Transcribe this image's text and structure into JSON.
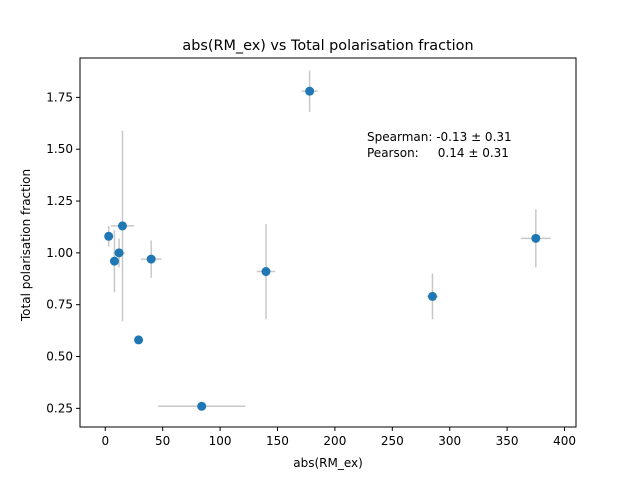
{
  "chart_data": {
    "type": "scatter",
    "title": "abs(RM_ex) vs Total polarisation fraction",
    "xlabel": "abs(RM_ex)",
    "ylabel": "Total polarisation fraction",
    "xlim": [
      -22,
      410
    ],
    "ylim": [
      0.16,
      1.94
    ],
    "xticks": [
      0,
      50,
      100,
      150,
      200,
      250,
      300,
      350,
      400
    ],
    "xtick_labels": [
      "0",
      "50",
      "100",
      "150",
      "200",
      "250",
      "300",
      "350",
      "400"
    ],
    "yticks": [
      0.25,
      0.5,
      0.75,
      1.0,
      1.25,
      1.5,
      1.75
    ],
    "ytick_labels": [
      "0.25",
      "0.50",
      "0.75",
      "1.00",
      "1.25",
      "1.50",
      "1.75"
    ],
    "grid": false,
    "legend": false,
    "colors": {
      "marker": "#1f77b4",
      "errorbar": "#c8c8c8"
    },
    "annotation": [
      "Spearman: -0.13 ± 0.31",
      "Pearson:     0.14 ± 0.31"
    ],
    "points": [
      {
        "x": 3,
        "y": 1.08,
        "xerr": 0,
        "yerr": 0.05
      },
      {
        "x": 8,
        "y": 0.96,
        "xerr": 4,
        "yerr": 0.15
      },
      {
        "x": 12,
        "y": 1.0,
        "xerr": 5,
        "yerr": 0.07
      },
      {
        "x": 15,
        "y": 1.13,
        "xerr": 10,
        "yerr": 0.46
      },
      {
        "x": 29,
        "y": 0.58,
        "xerr": 0,
        "yerr": 0.0
      },
      {
        "x": 40,
        "y": 0.97,
        "xerr": 9,
        "yerr": 0.09
      },
      {
        "x": 84,
        "y": 0.26,
        "xerr": 38,
        "yerr": 0.0
      },
      {
        "x": 140,
        "y": 0.91,
        "xerr": 8,
        "yerr": 0.23
      },
      {
        "x": 178,
        "y": 1.78,
        "xerr": 7,
        "yerr": 0.1
      },
      {
        "x": 285,
        "y": 0.79,
        "xerr": 5,
        "yerr": 0.11
      },
      {
        "x": 375,
        "y": 1.07,
        "xerr": 13,
        "yerr": 0.14
      }
    ]
  }
}
